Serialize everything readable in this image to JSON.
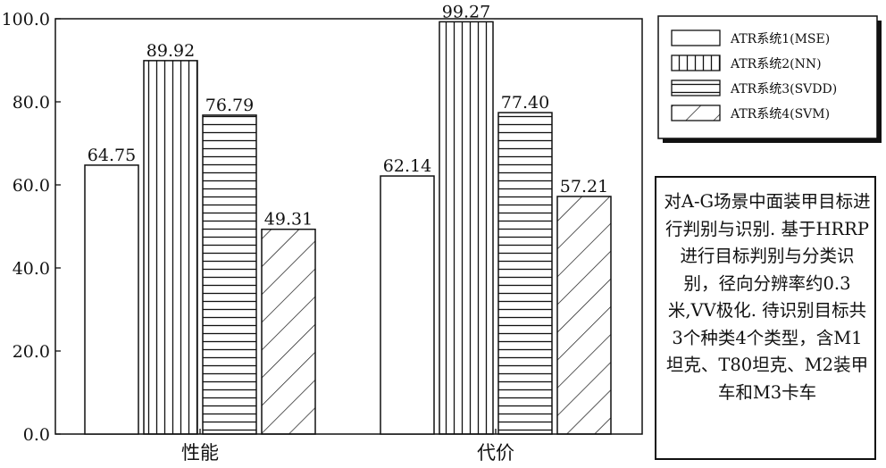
{
  "chart_data": {
    "type": "bar",
    "categories": [
      "性能",
      "代价"
    ],
    "series": [
      {
        "name": "ATR系统1(MSE)",
        "values": [
          64.75,
          62.14
        ],
        "pattern": "none"
      },
      {
        "name": "ATR系统2(NN)",
        "values": [
          89.92,
          99.27
        ],
        "pattern": "vertical"
      },
      {
        "name": "ATR系统3(SVDD)",
        "values": [
          76.79,
          77.4
        ],
        "pattern": "horizontal"
      },
      {
        "name": "ATR系统4(SVM)",
        "values": [
          49.31,
          57.21
        ],
        "pattern": "diagonal"
      }
    ],
    "data_labels": [
      [
        "64.75",
        "62.14"
      ],
      [
        "89.92",
        "99.27"
      ],
      [
        "76.79",
        "77.40"
      ],
      [
        "49.31",
        "57.21"
      ]
    ],
    "yticks": [
      "0.0",
      "20.0",
      "40.0",
      "60.0",
      "80.0",
      "100.0"
    ],
    "ylim": [
      0,
      100
    ],
    "legend_position": "top-right",
    "grid": false,
    "title": "",
    "xlabel": "",
    "ylabel": ""
  },
  "note": "对A-G场景中面装甲目标进行判别与识别. 基于HRRP进行目标判别与分类识别，径向分辨率约0.3米,VV极化. 待识别目标共3个种类4个类型，含M1坦克、T80坦克、M2装甲车和M3卡车",
  "colors": {
    "ink": "#111111",
    "background": "#ffffff"
  }
}
